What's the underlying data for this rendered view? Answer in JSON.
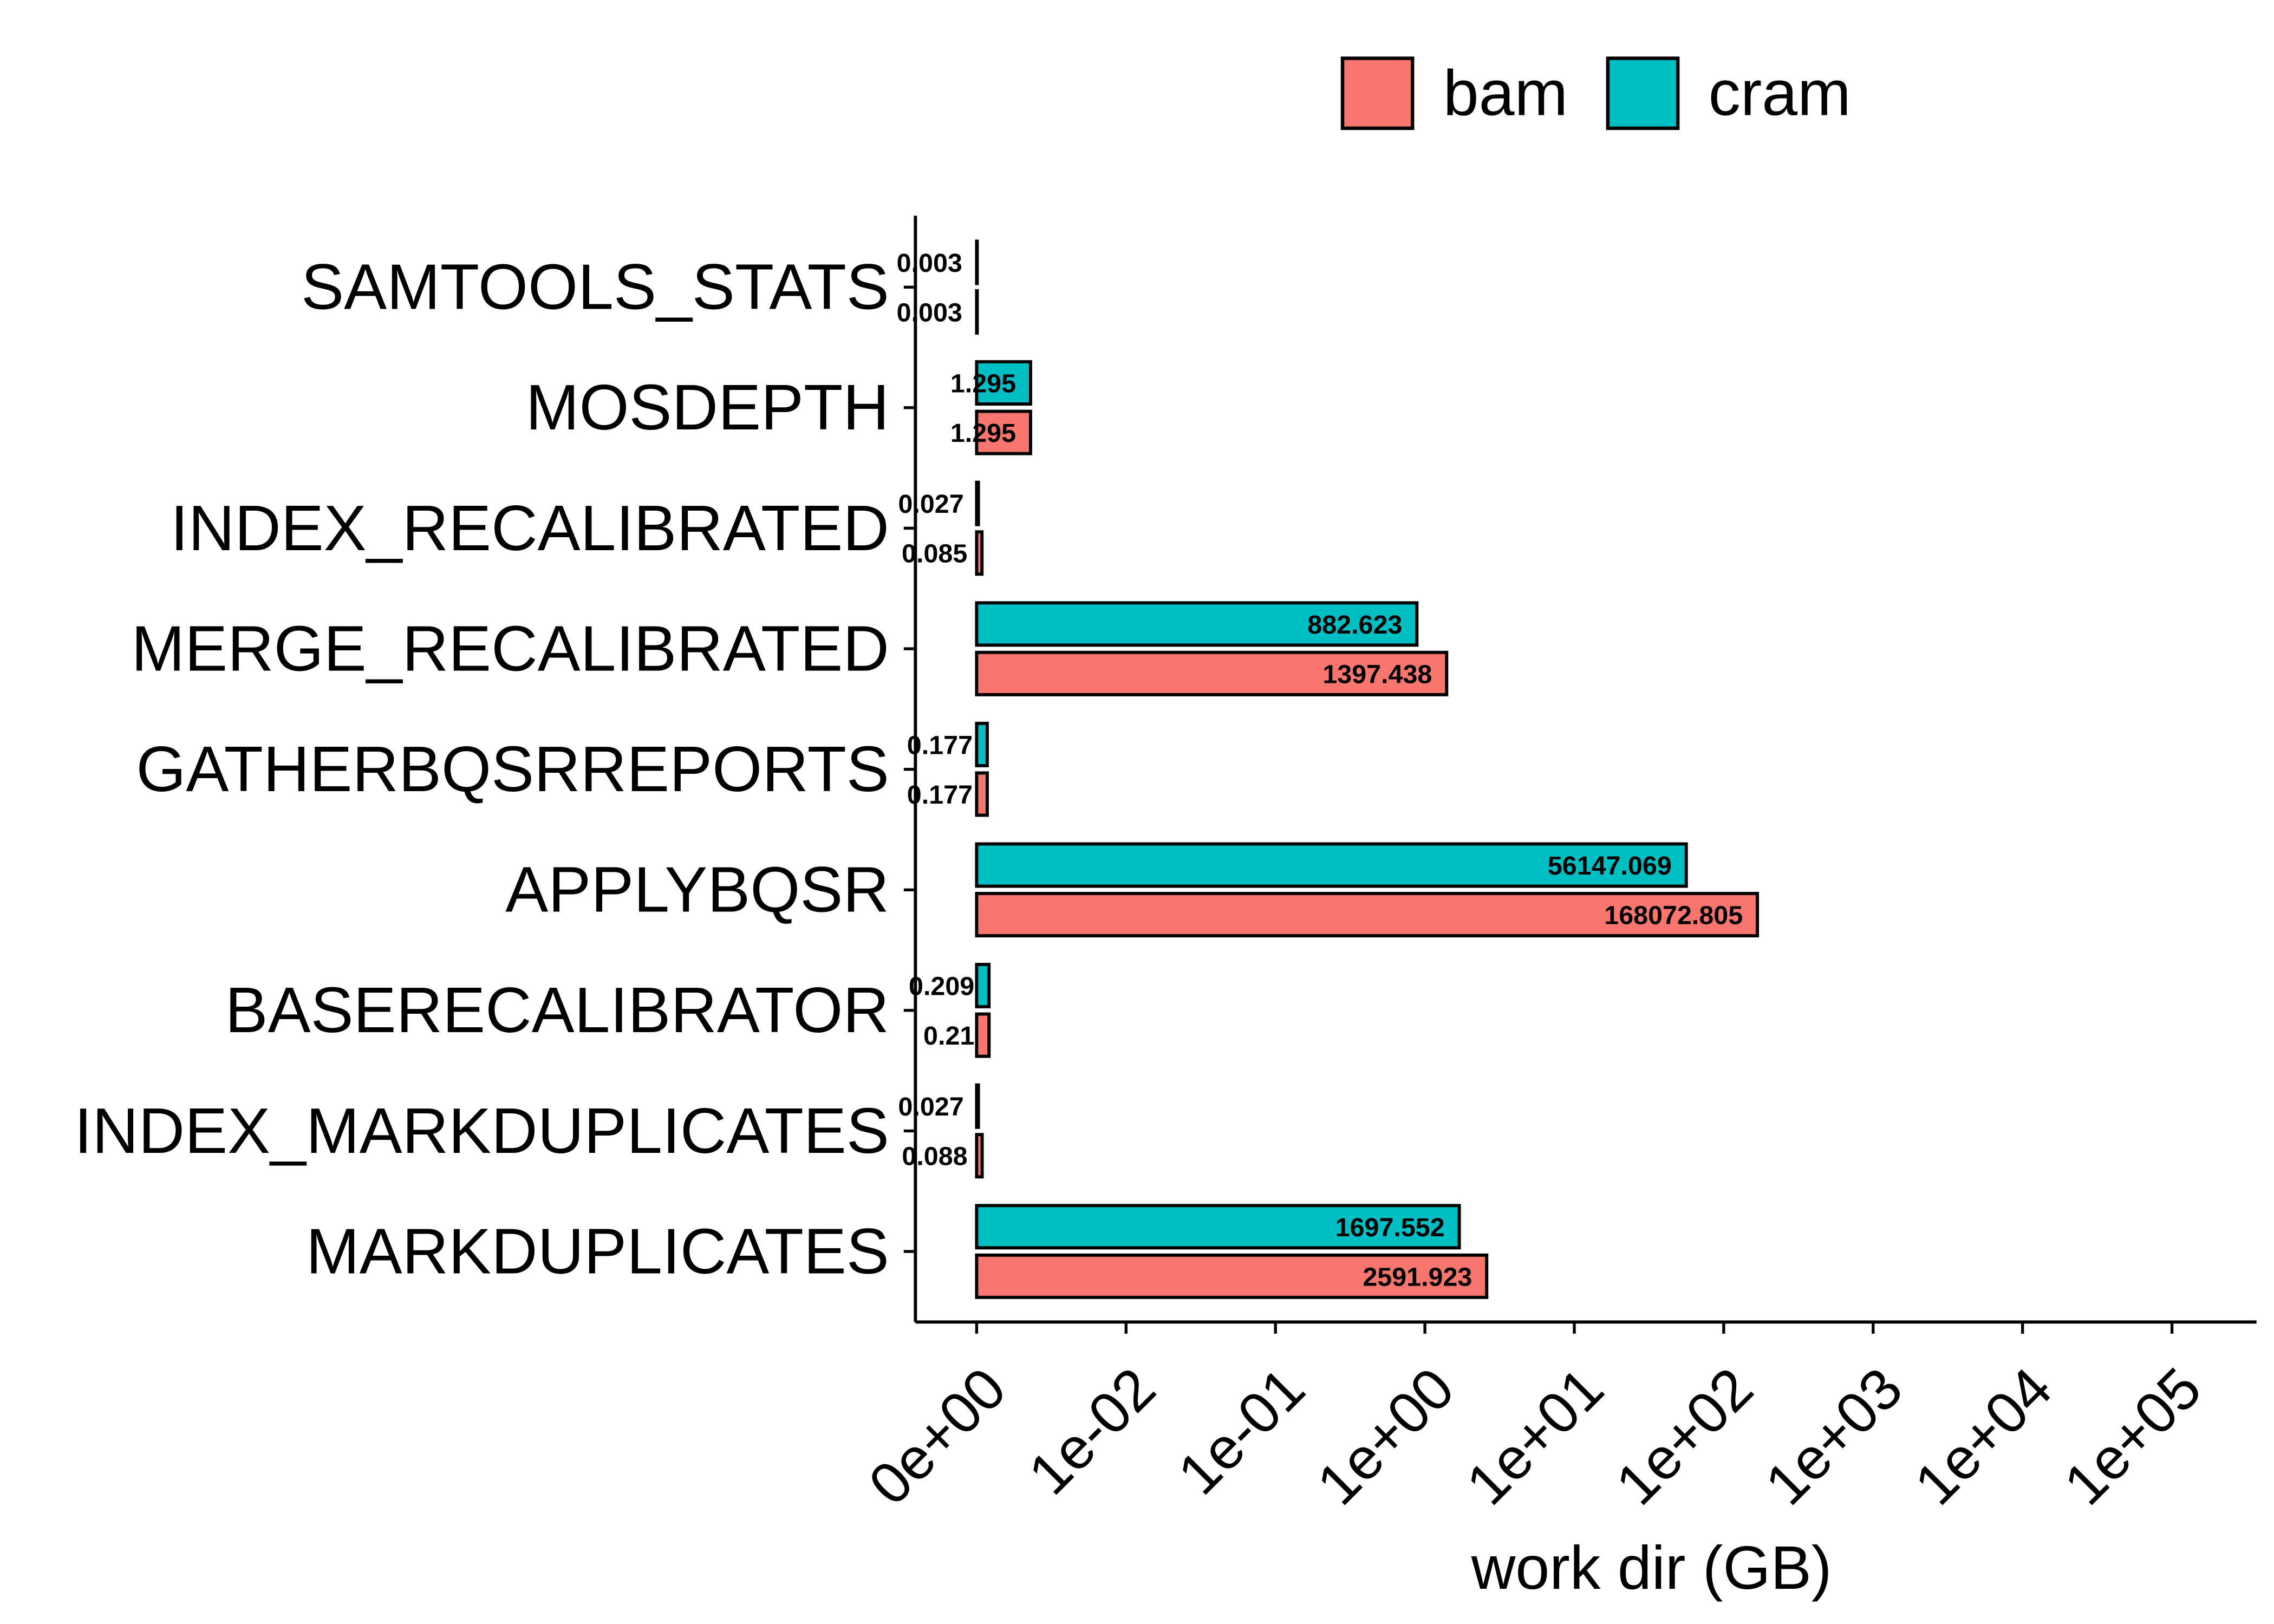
{
  "chart_data": {
    "type": "bar",
    "orientation": "horizontal",
    "xlabel": "work dir (GB)",
    "ylabel": "",
    "x_scale": "log10 of (value + 1)",
    "x_ticks": [
      "0e+00",
      "1e-02",
      "1e-01",
      "1e+00",
      "1e+01",
      "1e+02",
      "1e+03",
      "1e+04",
      "1e+05"
    ],
    "legend": {
      "position": "top",
      "entries": [
        {
          "name": "bam",
          "color": "#F8766D"
        },
        {
          "name": "cram",
          "color": "#00BFC4"
        }
      ]
    },
    "categories": [
      "SAMTOOLS_STATS",
      "MOSDEPTH",
      "INDEX_RECALIBRATED",
      "MERGE_RECALIBRATED",
      "GATHERBQSRREPORTS",
      "APPLYBQSR",
      "BASERECALIBRATOR",
      "INDEX_MARKDUPLICATES",
      "MARKDUPLICATES"
    ],
    "series": [
      {
        "name": "cram",
        "color": "#00BFC4",
        "values": [
          0.003,
          1.295,
          0.027,
          882.623,
          0.177,
          56147.069,
          0.209,
          0.027,
          1697.552
        ],
        "labels": [
          "0.003",
          "1.295",
          "0.027",
          "882.623",
          "0.177",
          "56147.069",
          "0.209",
          "0.027",
          "1697.552"
        ]
      },
      {
        "name": "bam",
        "color": "#F8766D",
        "values": [
          0.003,
          1.295,
          0.085,
          1397.438,
          0.177,
          168072.805,
          0.21,
          0.088,
          2591.923
        ],
        "labels": [
          "0.003",
          "1.295",
          "0.085",
          "1397.438",
          "0.177",
          "168072.805",
          "0.21",
          "0.088",
          "2591.923"
        ]
      }
    ],
    "grid": false
  }
}
